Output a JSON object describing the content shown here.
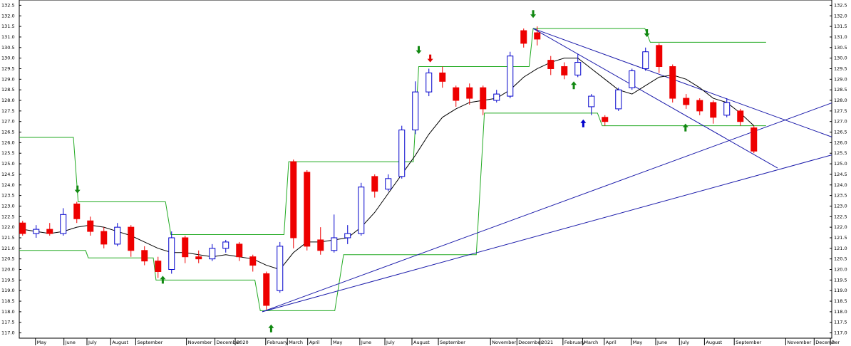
{
  "chart_data": {
    "type": "candlestick",
    "xlim": [
      0,
      120
    ],
    "ylim": [
      116.75,
      132.75
    ],
    "yticks": [
      {
        "value": 117.0,
        "label": "117.0"
      },
      {
        "value": 117.5,
        "label": "117.5"
      },
      {
        "value": 118.0,
        "label": "118.0"
      },
      {
        "value": 118.5,
        "label": "118.5"
      },
      {
        "value": 119.0,
        "label": "119.0"
      },
      {
        "value": 119.5,
        "label": "119.5"
      },
      {
        "value": 120.0,
        "label": "120.0"
      },
      {
        "value": 120.5,
        "label": "120.5"
      },
      {
        "value": 121.0,
        "label": "121.0"
      },
      {
        "value": 121.5,
        "label": "121.5"
      },
      {
        "value": 122.0,
        "label": "122.0"
      },
      {
        "value": 122.5,
        "label": "122.5"
      },
      {
        "value": 123.0,
        "label": "123.0"
      },
      {
        "value": 123.5,
        "label": "123.5"
      },
      {
        "value": 124.0,
        "label": "124.0"
      },
      {
        "value": 124.5,
        "label": "124.5"
      },
      {
        "value": 125.0,
        "label": "125.0"
      },
      {
        "value": 125.5,
        "label": "125.5"
      },
      {
        "value": 126.0,
        "label": "126.0"
      },
      {
        "value": 126.5,
        "label": "126.5"
      },
      {
        "value": 127.0,
        "label": "127.0"
      },
      {
        "value": 127.5,
        "label": "127.5"
      },
      {
        "value": 128.0,
        "label": "128.0"
      },
      {
        "value": 128.5,
        "label": "128.5"
      },
      {
        "value": 129.0,
        "label": "129.0"
      },
      {
        "value": 129.5,
        "label": "129.5"
      },
      {
        "value": 130.0,
        "label": "130.0"
      },
      {
        "value": 130.5,
        "label": "130.5"
      },
      {
        "value": 131.0,
        "label": "131.0"
      },
      {
        "value": 131.5,
        "label": "131.5"
      },
      {
        "value": 132.0,
        "label": "132.0"
      },
      {
        "value": 132.5,
        "label": "132.5"
      }
    ],
    "xticks": [
      {
        "value": 2.4,
        "label": "May"
      },
      {
        "value": 6.6,
        "label": "June"
      },
      {
        "value": 10.0,
        "label": "July"
      },
      {
        "value": 13.5,
        "label": "August"
      },
      {
        "value": 17.2,
        "label": "September"
      },
      {
        "value": 24.7,
        "label": "November"
      },
      {
        "value": 28.9,
        "label": "December"
      },
      {
        "value": 31.9,
        "label": "2020"
      },
      {
        "value": 36.4,
        "label": "February"
      },
      {
        "value": 39.6,
        "label": "March"
      },
      {
        "value": 42.6,
        "label": "April"
      },
      {
        "value": 46.1,
        "label": "May"
      },
      {
        "value": 50.3,
        "label": "June"
      },
      {
        "value": 54.0,
        "label": "July"
      },
      {
        "value": 58.0,
        "label": "August"
      },
      {
        "value": 61.9,
        "label": "September"
      },
      {
        "value": 69.6,
        "label": "November"
      },
      {
        "value": 73.5,
        "label": "December"
      },
      {
        "value": 76.9,
        "label": "2021"
      },
      {
        "value": 80.3,
        "label": "February"
      },
      {
        "value": 83.2,
        "label": "March"
      },
      {
        "value": 86.4,
        "label": "April"
      },
      {
        "value": 90.4,
        "label": "May"
      },
      {
        "value": 94.0,
        "label": "June"
      },
      {
        "value": 97.5,
        "label": "July"
      },
      {
        "value": 101.2,
        "label": "August"
      },
      {
        "value": 105.6,
        "label": "September"
      },
      {
        "value": 113.2,
        "label": "November"
      },
      {
        "value": 117.4,
        "label": "December"
      },
      {
        "value": 119.8,
        "label": "2"
      }
    ],
    "up_color": "#0000cc",
    "down_color": "#ee0000",
    "x": [
      0.5,
      2.5,
      4.5,
      6.5,
      8.5,
      10.5,
      12.5,
      14.5,
      16.5,
      18.5,
      20.5,
      22.5,
      24.5,
      26.5,
      28.5,
      30.5,
      32.5,
      34.5,
      36.5,
      38.5,
      40.5,
      42.5,
      44.5,
      46.5,
      48.5,
      50.5,
      52.5,
      54.5,
      56.5,
      58.5,
      60.5,
      62.5,
      64.5,
      66.5,
      68.5,
      70.5,
      72.5,
      74.5,
      76.5,
      78.5,
      80.5,
      82.5,
      84.5,
      86.5,
      88.5,
      90.5,
      92.5,
      94.5,
      96.5,
      98.5,
      100.5,
      102.5,
      104.5,
      106.5,
      108.5
    ],
    "open": [
      122.2,
      121.7,
      121.9,
      121.7,
      123.1,
      122.3,
      121.8,
      121.2,
      122.0,
      120.9,
      120.4,
      120.0,
      121.5,
      120.6,
      120.5,
      121.0,
      121.2,
      120.6,
      119.8,
      119.0,
      125.1,
      124.6,
      121.4,
      120.9,
      121.5,
      121.7,
      124.4,
      123.8,
      124.4,
      126.6,
      128.4,
      129.3,
      128.6,
      128.6,
      128.6,
      128.0,
      128.2,
      131.3,
      131.2,
      129.9,
      129.6,
      129.2,
      127.7,
      127.2,
      127.6,
      128.6,
      129.5,
      130.6,
      129.6,
      128.1,
      128.0,
      127.9,
      127.3,
      127.5,
      126.7
    ],
    "high": [
      122.3,
      122.1,
      122.2,
      122.9,
      123.2,
      122.5,
      122.0,
      122.2,
      122.1,
      121.1,
      120.6,
      121.8,
      121.6,
      120.9,
      121.2,
      121.4,
      121.3,
      120.7,
      119.9,
      121.3,
      125.2,
      124.7,
      122.0,
      122.6,
      122.1,
      124.1,
      124.5,
      124.5,
      126.8,
      128.9,
      129.5,
      129.6,
      128.7,
      128.8,
      128.7,
      128.5,
      130.3,
      131.4,
      131.5,
      130.1,
      129.8,
      130.2,
      128.3,
      127.3,
      128.6,
      129.5,
      130.5,
      130.7,
      129.7,
      128.3,
      128.1,
      128.0,
      128.1,
      127.6,
      126.8
    ],
    "low": [
      121.6,
      121.5,
      121.6,
      121.6,
      122.2,
      121.6,
      121.0,
      121.1,
      120.6,
      120.2,
      119.6,
      119.8,
      120.3,
      120.3,
      120.4,
      120.8,
      120.4,
      119.9,
      118.1,
      118.9,
      121.0,
      120.9,
      120.7,
      120.8,
      121.2,
      121.6,
      123.4,
      123.7,
      124.3,
      126.4,
      128.2,
      128.6,
      127.7,
      127.8,
      127.3,
      127.9,
      128.1,
      130.5,
      130.6,
      129.2,
      129.0,
      129.1,
      127.3,
      126.8,
      127.5,
      128.5,
      129.4,
      129.3,
      127.9,
      127.6,
      127.3,
      126.9,
      127.2,
      126.8,
      125.5
    ],
    "close": [
      121.7,
      121.9,
      121.7,
      122.6,
      122.4,
      121.8,
      121.2,
      122.0,
      120.9,
      120.4,
      119.9,
      121.5,
      120.6,
      120.5,
      121.0,
      121.3,
      120.6,
      120.2,
      118.3,
      121.1,
      121.5,
      121.1,
      120.9,
      121.5,
      121.7,
      123.9,
      123.7,
      124.3,
      126.6,
      128.4,
      129.3,
      128.9,
      128.0,
      128.1,
      127.6,
      128.3,
      130.1,
      130.7,
      130.9,
      129.5,
      129.2,
      129.8,
      128.2,
      127.0,
      128.5,
      129.4,
      130.3,
      129.6,
      128.1,
      127.8,
      127.5,
      127.2,
      127.9,
      127.0,
      125.6
    ],
    "average": {
      "color": "#000000",
      "values": [
        121.9,
        121.8,
        121.7,
        121.8,
        122.0,
        122.1,
        122.0,
        121.8,
        121.6,
        121.3,
        121.0,
        120.8,
        120.8,
        120.7,
        120.6,
        120.7,
        120.6,
        120.5,
        120.2,
        120.0,
        120.8,
        121.3,
        121.3,
        121.4,
        121.5,
        122.0,
        122.7,
        123.6,
        124.5,
        125.4,
        126.4,
        127.2,
        127.6,
        127.9,
        128.0,
        128.1,
        128.5,
        129.1,
        129.5,
        129.8,
        130.0,
        130.0,
        129.5,
        129.0,
        128.5,
        128.3,
        128.7,
        129.1,
        129.2,
        129.0,
        128.6,
        128.1,
        127.9,
        127.4,
        126.8
      ]
    },
    "steps": [
      {
        "color": "#22aa22",
        "x": [
          0,
          8.0,
          8.7,
          21.6,
          22.4,
          39.1,
          39.8,
          58.2,
          59.0,
          75.3,
          75.9,
          92.4,
          93.2,
          110.3
        ],
        "y": [
          126.25,
          126.25,
          123.2,
          123.2,
          121.65,
          121.65,
          125.1,
          125.1,
          129.6,
          129.6,
          131.4,
          131.4,
          130.75,
          130.75
        ]
      },
      {
        "color": "#22aa22",
        "x": [
          0,
          9.8,
          10.2,
          19.8,
          20.2,
          34.8,
          35.6,
          46.6,
          47.9,
          67.5,
          68.7,
          85.4,
          86.1,
          110.3
        ],
        "y": [
          120.9,
          120.9,
          120.55,
          120.55,
          119.5,
          119.5,
          118.05,
          118.05,
          120.7,
          120.7,
          127.4,
          127.4,
          126.8,
          126.8
        ]
      }
    ],
    "trendlines": {
      "color": "#1a1aaa",
      "lines": [
        {
          "x": [
            35.9,
            120
          ],
          "y": [
            118.0,
            127.88
          ]
        },
        {
          "x": [
            35.9,
            120
          ],
          "y": [
            118.0,
            125.42
          ]
        },
        {
          "x": [
            75.9,
            120
          ],
          "y": [
            131.4,
            126.27
          ]
        },
        {
          "x": [
            75.9,
            112
          ],
          "y": [
            131.4,
            124.8
          ]
        }
      ]
    },
    "arrows": [
      {
        "x": 8.6,
        "y": 123.6,
        "direction": "down",
        "color": "#118811"
      },
      {
        "x": 21.2,
        "y": 119.7,
        "direction": "up",
        "color": "#118811"
      },
      {
        "x": 37.2,
        "y": 117.4,
        "direction": "up",
        "color": "#118811"
      },
      {
        "x": 59.0,
        "y": 130.2,
        "direction": "down",
        "color": "#118811"
      },
      {
        "x": 60.7,
        "y": 129.8,
        "direction": "down",
        "color": "#dd0000"
      },
      {
        "x": 75.9,
        "y": 131.9,
        "direction": "down",
        "color": "#118811"
      },
      {
        "x": 83.3,
        "y": 127.1,
        "direction": "up",
        "color": "#0000cc"
      },
      {
        "x": 81.9,
        "y": 128.9,
        "direction": "up",
        "color": "#118811"
      },
      {
        "x": 92.7,
        "y": 131.0,
        "direction": "down",
        "color": "#118811"
      },
      {
        "x": 98.4,
        "y": 126.9,
        "direction": "up",
        "color": "#118811"
      }
    ]
  }
}
